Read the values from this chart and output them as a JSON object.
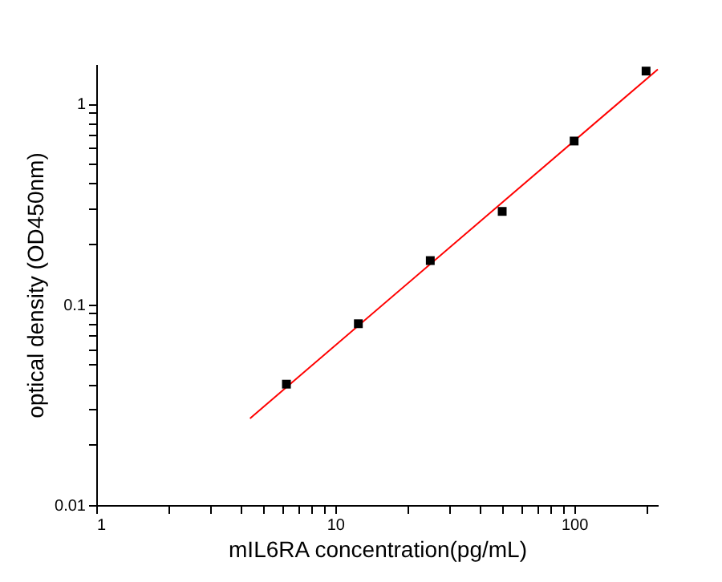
{
  "chart_data": {
    "type": "scatter",
    "xlabel": "mIL6RA concentration(pg/mL)",
    "ylabel": "optical density (OD450nm)",
    "log": "xy",
    "grid": false,
    "x": [
      6.25,
      12.5,
      25,
      50,
      100,
      200
    ],
    "series": [
      {
        "color": "#000000",
        "marker": "square",
        "values": [
          0.04,
          0.08,
          0.165,
          0.29,
          0.65,
          1.45
        ]
      },
      {
        "type": "line",
        "color": "#ff0000",
        "marker": "none",
        "x": [
          4.4,
          224
        ],
        "values": [
          0.027,
          1.48
        ]
      }
    ],
    "xlim": [
      1,
      224
    ],
    "ylim": [
      0.01,
      1.57
    ],
    "xticks": [
      1,
      {
        "value": 2,
        "label": null
      },
      {
        "value": 3,
        "label": null
      },
      {
        "value": 4,
        "label": null
      },
      {
        "value": 5,
        "label": null
      },
      {
        "value": 6,
        "label": null
      },
      {
        "value": 7,
        "label": null
      },
      {
        "value": 8,
        "label": null
      },
      {
        "value": 9,
        "label": null
      },
      10,
      {
        "value": 20,
        "label": null
      },
      {
        "value": 30,
        "label": null
      },
      {
        "value": 40,
        "label": null
      },
      {
        "value": 50,
        "label": null
      },
      {
        "value": 60,
        "label": null
      },
      {
        "value": 70,
        "label": null
      },
      {
        "value": 80,
        "label": null
      },
      {
        "value": 90,
        "label": null
      },
      100,
      {
        "value": 200,
        "label": null
      }
    ],
    "yticks": [
      0.01,
      {
        "value": 0.02,
        "label": null
      },
      {
        "value": 0.03,
        "label": null
      },
      {
        "value": 0.04,
        "label": null
      },
      {
        "value": 0.05,
        "label": null
      },
      {
        "value": 0.06,
        "label": null
      },
      {
        "value": 0.07,
        "label": null
      },
      {
        "value": 0.08,
        "label": null
      },
      {
        "value": 0.09,
        "label": null
      },
      0.1,
      {
        "value": 0.2,
        "label": null
      },
      {
        "value": 0.3,
        "label": null
      },
      {
        "value": 0.4,
        "label": null
      },
      {
        "value": 0.5,
        "label": null
      },
      {
        "value": 0.6,
        "label": null
      },
      {
        "value": 0.7,
        "label": null
      },
      {
        "value": 0.8,
        "label": null
      },
      {
        "value": 0.9,
        "label": null
      },
      1
    ]
  }
}
